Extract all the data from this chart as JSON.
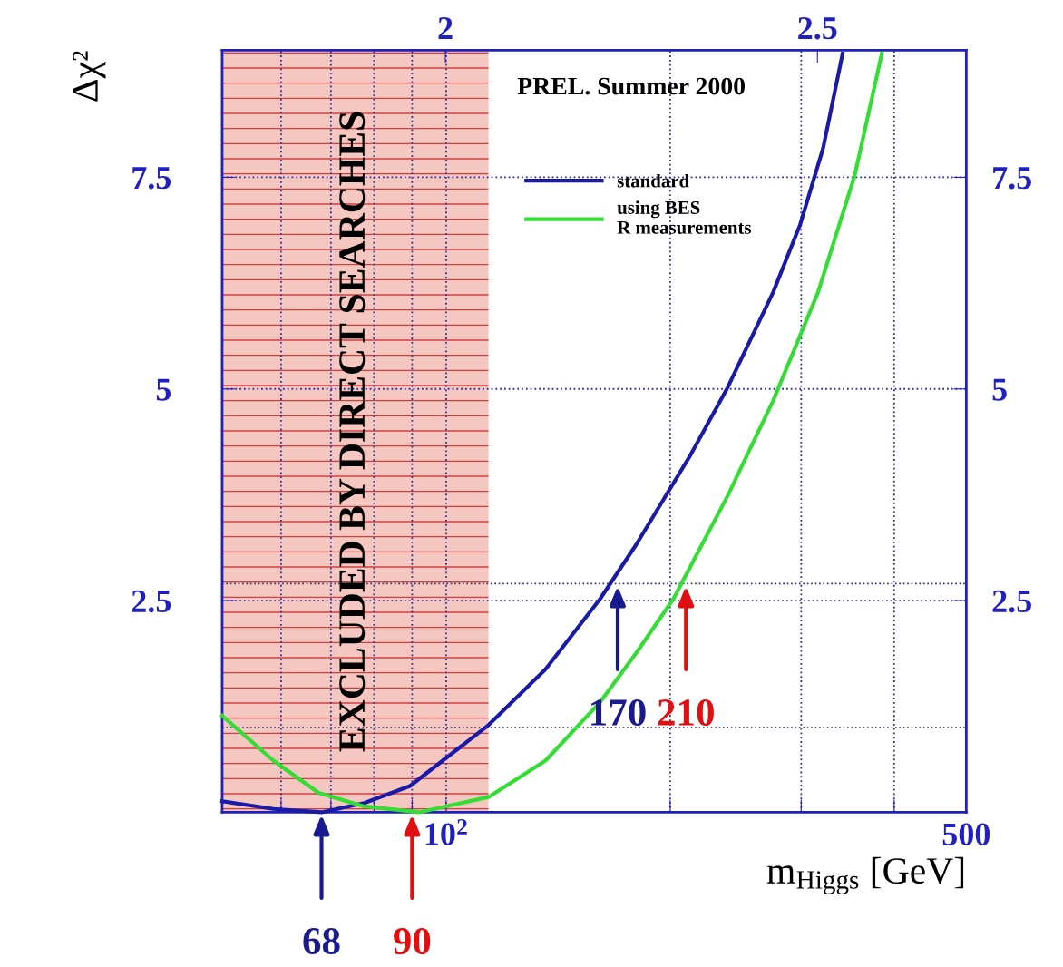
{
  "chart_data": {
    "type": "line",
    "title": null,
    "xlabel": "m$_{Higgs}$ [GeV]",
    "ylabel": "Δχ²",
    "log": "x",
    "xlim": [
      50,
      500
    ],
    "xticks": [
      {
        "value": 60,
        "label": null
      },
      {
        "value": 70,
        "label": null
      },
      {
        "value": 80,
        "label": null
      },
      {
        "value": 90,
        "label": null
      },
      {
        "value": 100,
        "label": "10$^{2}$"
      },
      {
        "value": 200,
        "label": null
      },
      {
        "value": 300,
        "label": null
      },
      {
        "value": 400,
        "label": null
      },
      {
        "value": 500,
        "label": "500"
      }
    ],
    "x2lim": [
      1.7,
      2.7
    ],
    "x2ticks": [
      2,
      2.5
    ],
    "ylim": [
      0,
      9
    ],
    "yticks": [
      2.5,
      5,
      7.5
    ],
    "y2lim": [
      0,
      9
    ],
    "y2ticks": [
      2.5,
      5,
      7.5
    ],
    "grid": true,
    "legend": "top",
    "marker": "none",
    "line_style": "solid",
    "series": [
      {
        "name": "standard",
        "color": "#1a1aa8",
        "x": [
          50,
          58.6,
          68,
          77.6,
          89.4,
          114,
          136,
          161,
          180,
          213,
          239,
          275,
          299,
          321,
          341
        ],
        "values": [
          0.13,
          0.04,
          0,
          0.11,
          0.31,
          1.03,
          1.69,
          2.52,
          3.16,
          4.22,
          5.02,
          6.14,
          6.94,
          7.84,
          8.96
        ]
      },
      {
        "name": "using BES\nR measurements",
        "color": "#33dd33",
        "x": [
          50,
          58.6,
          67.4,
          77.6,
          92,
          114,
          136,
          161,
          180,
          202,
          239,
          275,
          316,
          354,
          385
        ],
        "values": [
          1.14,
          0.61,
          0.23,
          0.07,
          0,
          0.18,
          0.61,
          1.3,
          1.88,
          2.52,
          3.74,
          4.86,
          6.14,
          7.52,
          8.96
        ]
      }
    ],
    "ref_lines": [
      {
        "axis": "y",
        "value": 1,
        "color": "#333366",
        "line_style": "dotted"
      },
      {
        "axis": "y",
        "value": 2.7,
        "color": "#333366",
        "line_style": "dotted"
      }
    ],
    "bands": [
      {
        "axis": "x",
        "from": 50,
        "to": 114,
        "label": "EXCLUDED BY DIRECT SEARCHES",
        "color": "#f4c8c0"
      }
    ],
    "annotations": [
      "PREL. Summer 2000",
      {
        "text": "68",
        "x": 68,
        "y": 0
      },
      {
        "text": "90",
        "x": 90,
        "y": 0
      },
      {
        "text": "170",
        "x": 170,
        "y": 2.7
      },
      {
        "text": "210",
        "x": 210,
        "y": 2.7
      }
    ]
  }
}
